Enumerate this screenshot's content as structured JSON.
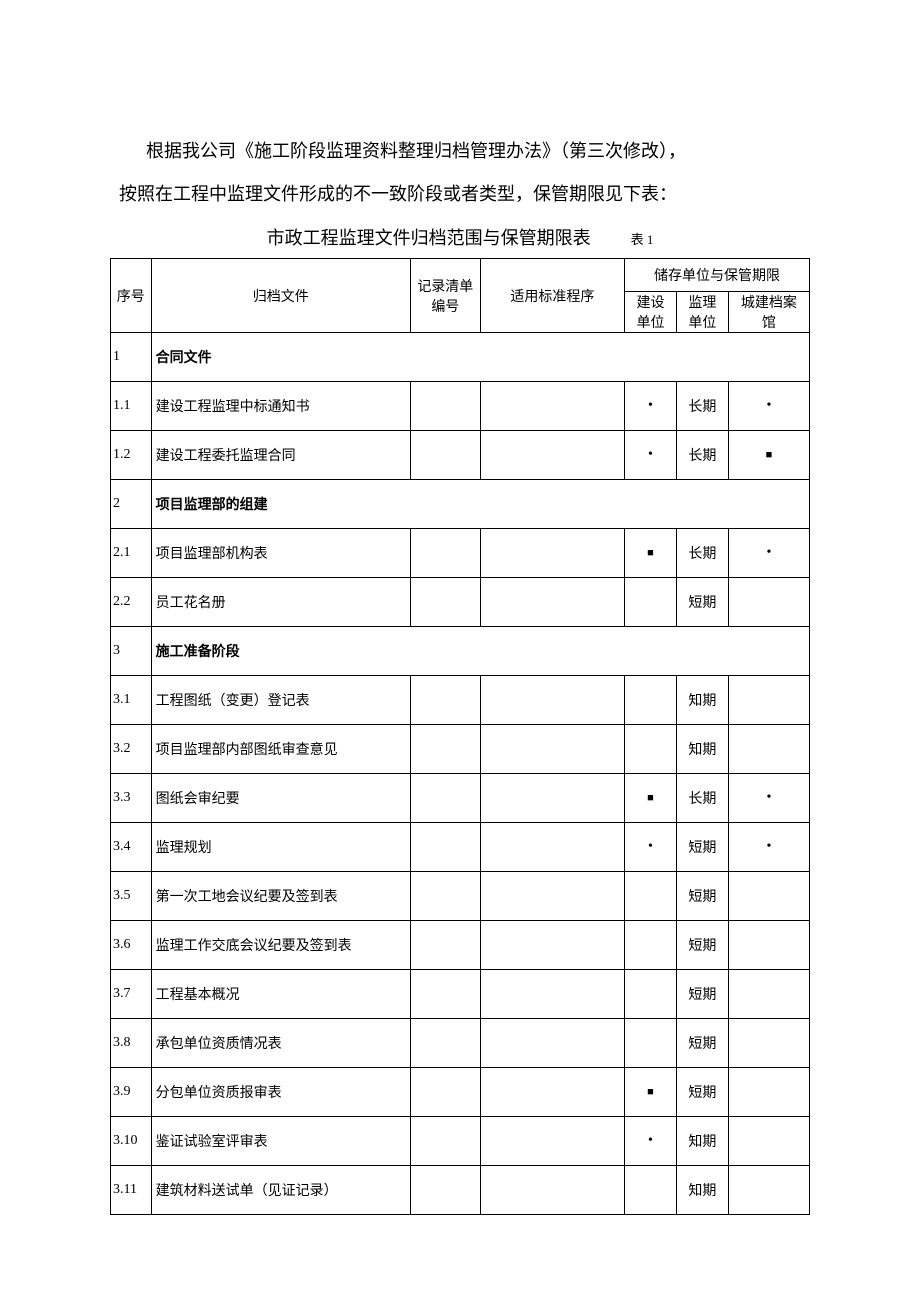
{
  "intro": {
    "line1": "根据我公司《施工阶段监理资料整理归档管理办法》（第三次修改），",
    "line2": "按照在工程中监理文件形成的不一致阶段或者类型，保管期限见下表："
  },
  "title": "市政工程监理文件归档范围与保管期限表",
  "table_label": "表 1",
  "headers": {
    "idx": "序号",
    "file": "归档文件",
    "record_no_l1": "记录清单",
    "record_no_l2": "编号",
    "standard": "适用标准程序",
    "storage_group": "储存单位与保管期限",
    "unit_build_l1": "建设",
    "unit_build_l2": "单位",
    "unit_super_l1": "监理",
    "unit_super_l2": "单位",
    "unit_arch_l1": "城建档案",
    "unit_arch_l2": "馆"
  },
  "marks": {
    "dot": "•",
    "square": "■"
  },
  "terms": {
    "long": "长期",
    "short": "短期",
    "known": "知期"
  },
  "rows": [
    {
      "idx": "1",
      "name": "合同文件",
      "section": true
    },
    {
      "idx": "1.1",
      "name": "建设工程监理中标通知书",
      "u1": "dot",
      "u2": "长期",
      "u3": "dot"
    },
    {
      "idx": "1.2",
      "name": "建设工程委托监理合同",
      "u1": "dot",
      "u2": "长期",
      "u3": "square"
    },
    {
      "idx": "2",
      "name": "项目监理部的组建",
      "section": true
    },
    {
      "idx": "2.1",
      "name": "项目监理部机构表",
      "u1": "square",
      "u2": "长期",
      "u3": "dot"
    },
    {
      "idx": "2.2",
      "name": "员工花名册",
      "u1": "",
      "u2": "短期",
      "u3": ""
    },
    {
      "idx": "3",
      "name": "施工准备阶段",
      "section": true
    },
    {
      "idx": "3.1",
      "name": "工程图纸（变更）登记表",
      "u1": "",
      "u2": "知期",
      "u3": ""
    },
    {
      "idx": "3.2",
      "name": "项目监理部内部图纸审查意见",
      "u1": "",
      "u2": "知期",
      "u3": ""
    },
    {
      "idx": "3.3",
      "name": "图纸会审纪要",
      "u1": "square",
      "u2": "长期",
      "u3": "dot"
    },
    {
      "idx": "3.4",
      "name": "监理规划",
      "u1": "dot",
      "u2": "短期",
      "u3": "dot"
    },
    {
      "idx": "3.5",
      "name": "第一次工地会议纪要及签到表",
      "u1": "",
      "u2": "短期",
      "u3": ""
    },
    {
      "idx": "3.6",
      "name": "监理工作交底会议纪要及签到表",
      "u1": "",
      "u2": "短期",
      "u3": ""
    },
    {
      "idx": "3.7",
      "name": "工程基本概况",
      "u1": "",
      "u2": "短期",
      "u3": ""
    },
    {
      "idx": "3.8",
      "name": "承包单位资质情况表",
      "u1": "",
      "u2": "短期",
      "u3": ""
    },
    {
      "idx": "3.9",
      "name": "分包单位资质报审表",
      "u1": "square",
      "u2": "短期",
      "u3": ""
    },
    {
      "idx": "3.10",
      "name": "鉴证试验室评审表",
      "u1": "dot",
      "u2": "知期",
      "u3": ""
    },
    {
      "idx": "3.11",
      "name": "建筑材料送试单（见证记录）",
      "u1": "",
      "u2": "知期",
      "u3": ""
    }
  ]
}
